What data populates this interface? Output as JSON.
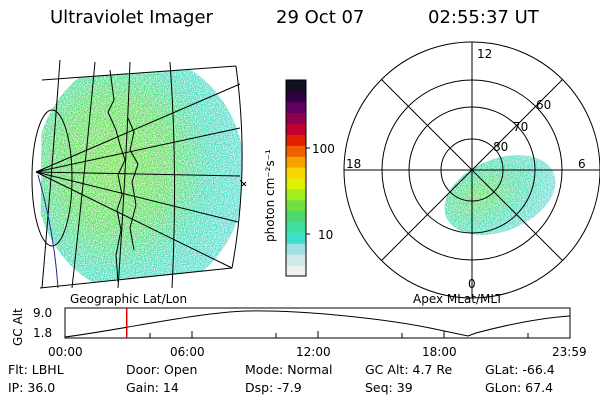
{
  "header": {
    "title": "Ultraviolet Imager",
    "date": "29 Oct 07",
    "time": "02:55:37 UT"
  },
  "panels": {
    "left_label": "Geographic Lat/Lon",
    "right_label": "Apex MLat/MLT"
  },
  "colorbar": {
    "unit_label": "photon cm⁻²s⁻¹",
    "tick_100": "100",
    "tick_10": "10",
    "colors": [
      "#f0f0f0",
      "#cfe8e8",
      "#9fe0e0",
      "#3fdfcf",
      "#40e0a0",
      "#50d870",
      "#70e040",
      "#a0f020",
      "#e0f000",
      "#f8d800",
      "#f8a000",
      "#f06000",
      "#e02000",
      "#c00030",
      "#900050",
      "#600060",
      "#300040",
      "#101020"
    ]
  },
  "polar": {
    "mlt_12": "12",
    "mlt_18": "18",
    "mlt_6": "6",
    "mlt_0": "0",
    "lat_60": "60",
    "lat_70": "70",
    "lat_80": "80"
  },
  "timeline": {
    "y_label": "GC Alt",
    "y_top": "9.0",
    "y_bottom": "1.8",
    "ticks": [
      "00:00",
      "06:00",
      "12:00",
      "18:00",
      "23:59"
    ],
    "marker_hours": 2.93
  },
  "info": {
    "filter": "Flt: LBHL",
    "ip": "IP: 36.0",
    "door": "Door: Open",
    "gain": "Gain: 14",
    "mode": "Mode: Normal",
    "dsp": "Dsp:   -7.9",
    "gc_alt": "GC Alt: 4.7 Re",
    "seq": "Seq: 39",
    "glat": "GLat: -66.4",
    "glon": "GLon:  67.4"
  }
}
